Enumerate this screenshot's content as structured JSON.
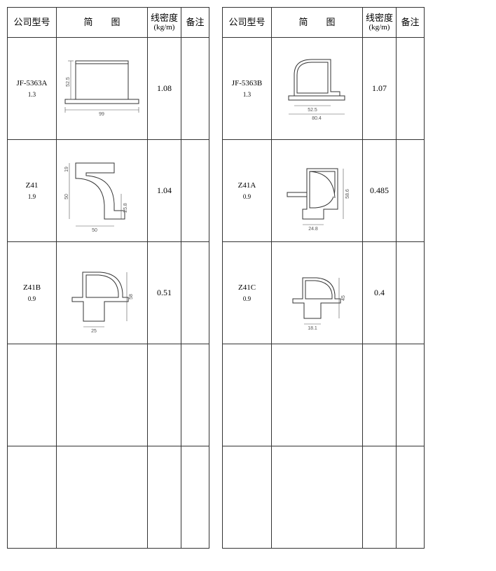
{
  "headers": {
    "model": "公司型号",
    "figure": "简　　图",
    "density_top": "线密度",
    "density_unit": "(kg/m)",
    "note": "备注"
  },
  "left": [
    {
      "model": "JF-5363A",
      "sub": "1.3",
      "density": "1.08",
      "svg": "fig-5363a"
    },
    {
      "model": "Z41",
      "sub": "1.9",
      "density": "1.04",
      "svg": "fig-z41"
    },
    {
      "model": "Z41B",
      "sub": "0.9",
      "density": "0.51",
      "svg": "fig-z41b"
    }
  ],
  "right": [
    {
      "model": "JF-5363B",
      "sub": "1.3",
      "density": "1.07",
      "svg": "fig-5363b"
    },
    {
      "model": "Z41A",
      "sub": "0.9",
      "density": "0.485",
      "svg": "fig-z41a"
    },
    {
      "model": "Z41C",
      "sub": "0.9",
      "density": "0.4",
      "svg": "fig-z41c"
    }
  ],
  "dims": {
    "5363a_w": "99",
    "5363a_h": "52.5",
    "5363b_w": "80.4",
    "5363b_w2": "52.5",
    "z41_w": "50",
    "z41_h": "50",
    "z41_t": "19",
    "z41_r": "25.8",
    "z41a_w": "24.8",
    "z41a_h": "58.6",
    "z41b_w": "25",
    "z41b_h": "58",
    "z41c_w": "18.1",
    "z41c_h": "45"
  },
  "colors": {
    "border": "#333333",
    "dim": "#555555",
    "bg": "#ffffff"
  }
}
